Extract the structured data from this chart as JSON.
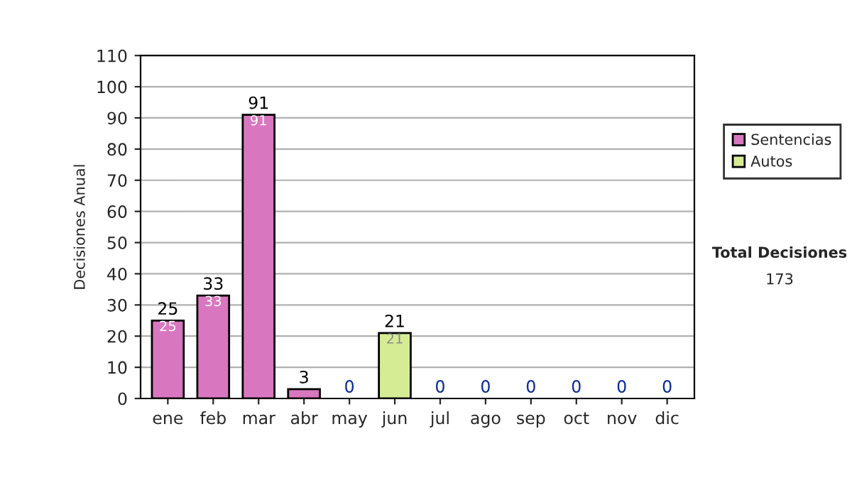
{
  "chart_data": {
    "type": "bar",
    "stacked": true,
    "ylabel": "Decisiones Anual",
    "categories": [
      "ene",
      "feb",
      "mar",
      "abr",
      "may",
      "jun",
      "jul",
      "ago",
      "sep",
      "oct",
      "nov",
      "dic"
    ],
    "series": [
      {
        "name": "Sentencias",
        "color": "#d877bf",
        "values": [
          25,
          33,
          91,
          3,
          0,
          0,
          0,
          0,
          0,
          0,
          0,
          0
        ],
        "value_labels": [
          "25",
          "33",
          "91",
          null,
          null,
          null,
          null,
          null,
          null,
          null,
          null,
          null
        ]
      },
      {
        "name": "Autos",
        "color": "#d6ec94",
        "values": [
          0,
          0,
          0,
          0,
          0,
          21,
          0,
          0,
          0,
          0,
          0,
          0
        ],
        "value_labels": [
          null,
          null,
          null,
          null,
          null,
          "21",
          null,
          null,
          null,
          null,
          null,
          null
        ]
      }
    ],
    "totals": [
      "25",
      "33",
      "91",
      "3",
      "0",
      "21",
      "0",
      "0",
      "0",
      "0",
      "0",
      "0"
    ],
    "ylim": [
      0,
      110
    ],
    "yticks": [
      0,
      10,
      20,
      30,
      40,
      50,
      60,
      70,
      80,
      90,
      100,
      110
    ],
    "grid": "y",
    "legend": "right",
    "annotations": [
      "Total Decisiones",
      "173"
    ]
  }
}
